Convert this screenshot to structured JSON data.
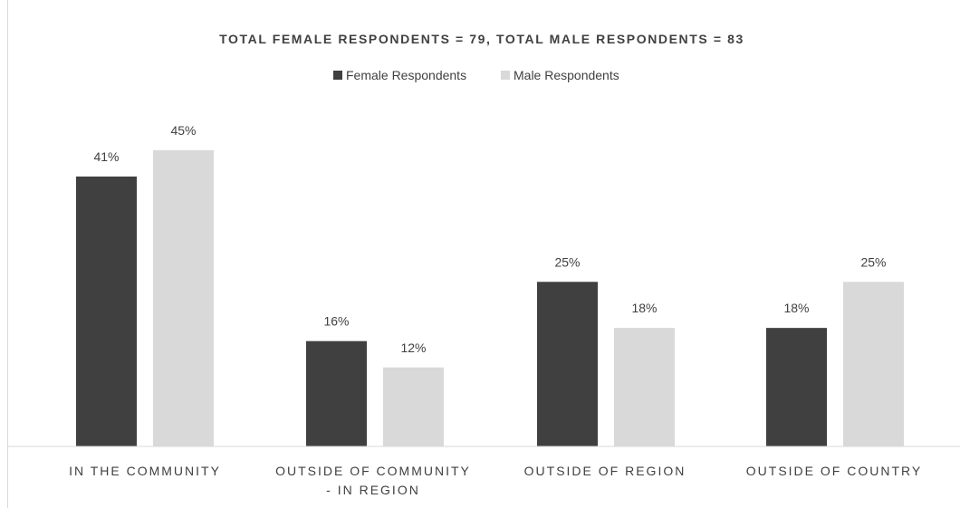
{
  "chart_data": {
    "type": "bar",
    "title": "TOTAL FEMALE RESPONDENTS = 79, TOTAL MALE RESPONDENTS = 83",
    "categories": [
      [
        "IN THE COMMUNITY"
      ],
      [
        "OUTSIDE OF COMMUNITY",
        "- IN REGION"
      ],
      [
        "OUTSIDE OF REGION"
      ],
      [
        "OUTSIDE OF COUNTRY"
      ]
    ],
    "series": [
      {
        "name": "Female Respondents",
        "color": "#404040",
        "values": [
          41,
          16,
          25,
          18
        ],
        "labels": [
          "41%",
          "16%",
          "25%",
          "18%"
        ]
      },
      {
        "name": "Male Respondents",
        "color": "#d9d9d9",
        "values": [
          45,
          12,
          18,
          25
        ],
        "labels": [
          "45%",
          "12%",
          "18%",
          "25%"
        ]
      }
    ],
    "ylim": [
      0,
      50
    ],
    "value_unit": "%",
    "gridlines": false,
    "y_axis_visible": false,
    "legend_position": "top-center",
    "data_labels": true
  }
}
